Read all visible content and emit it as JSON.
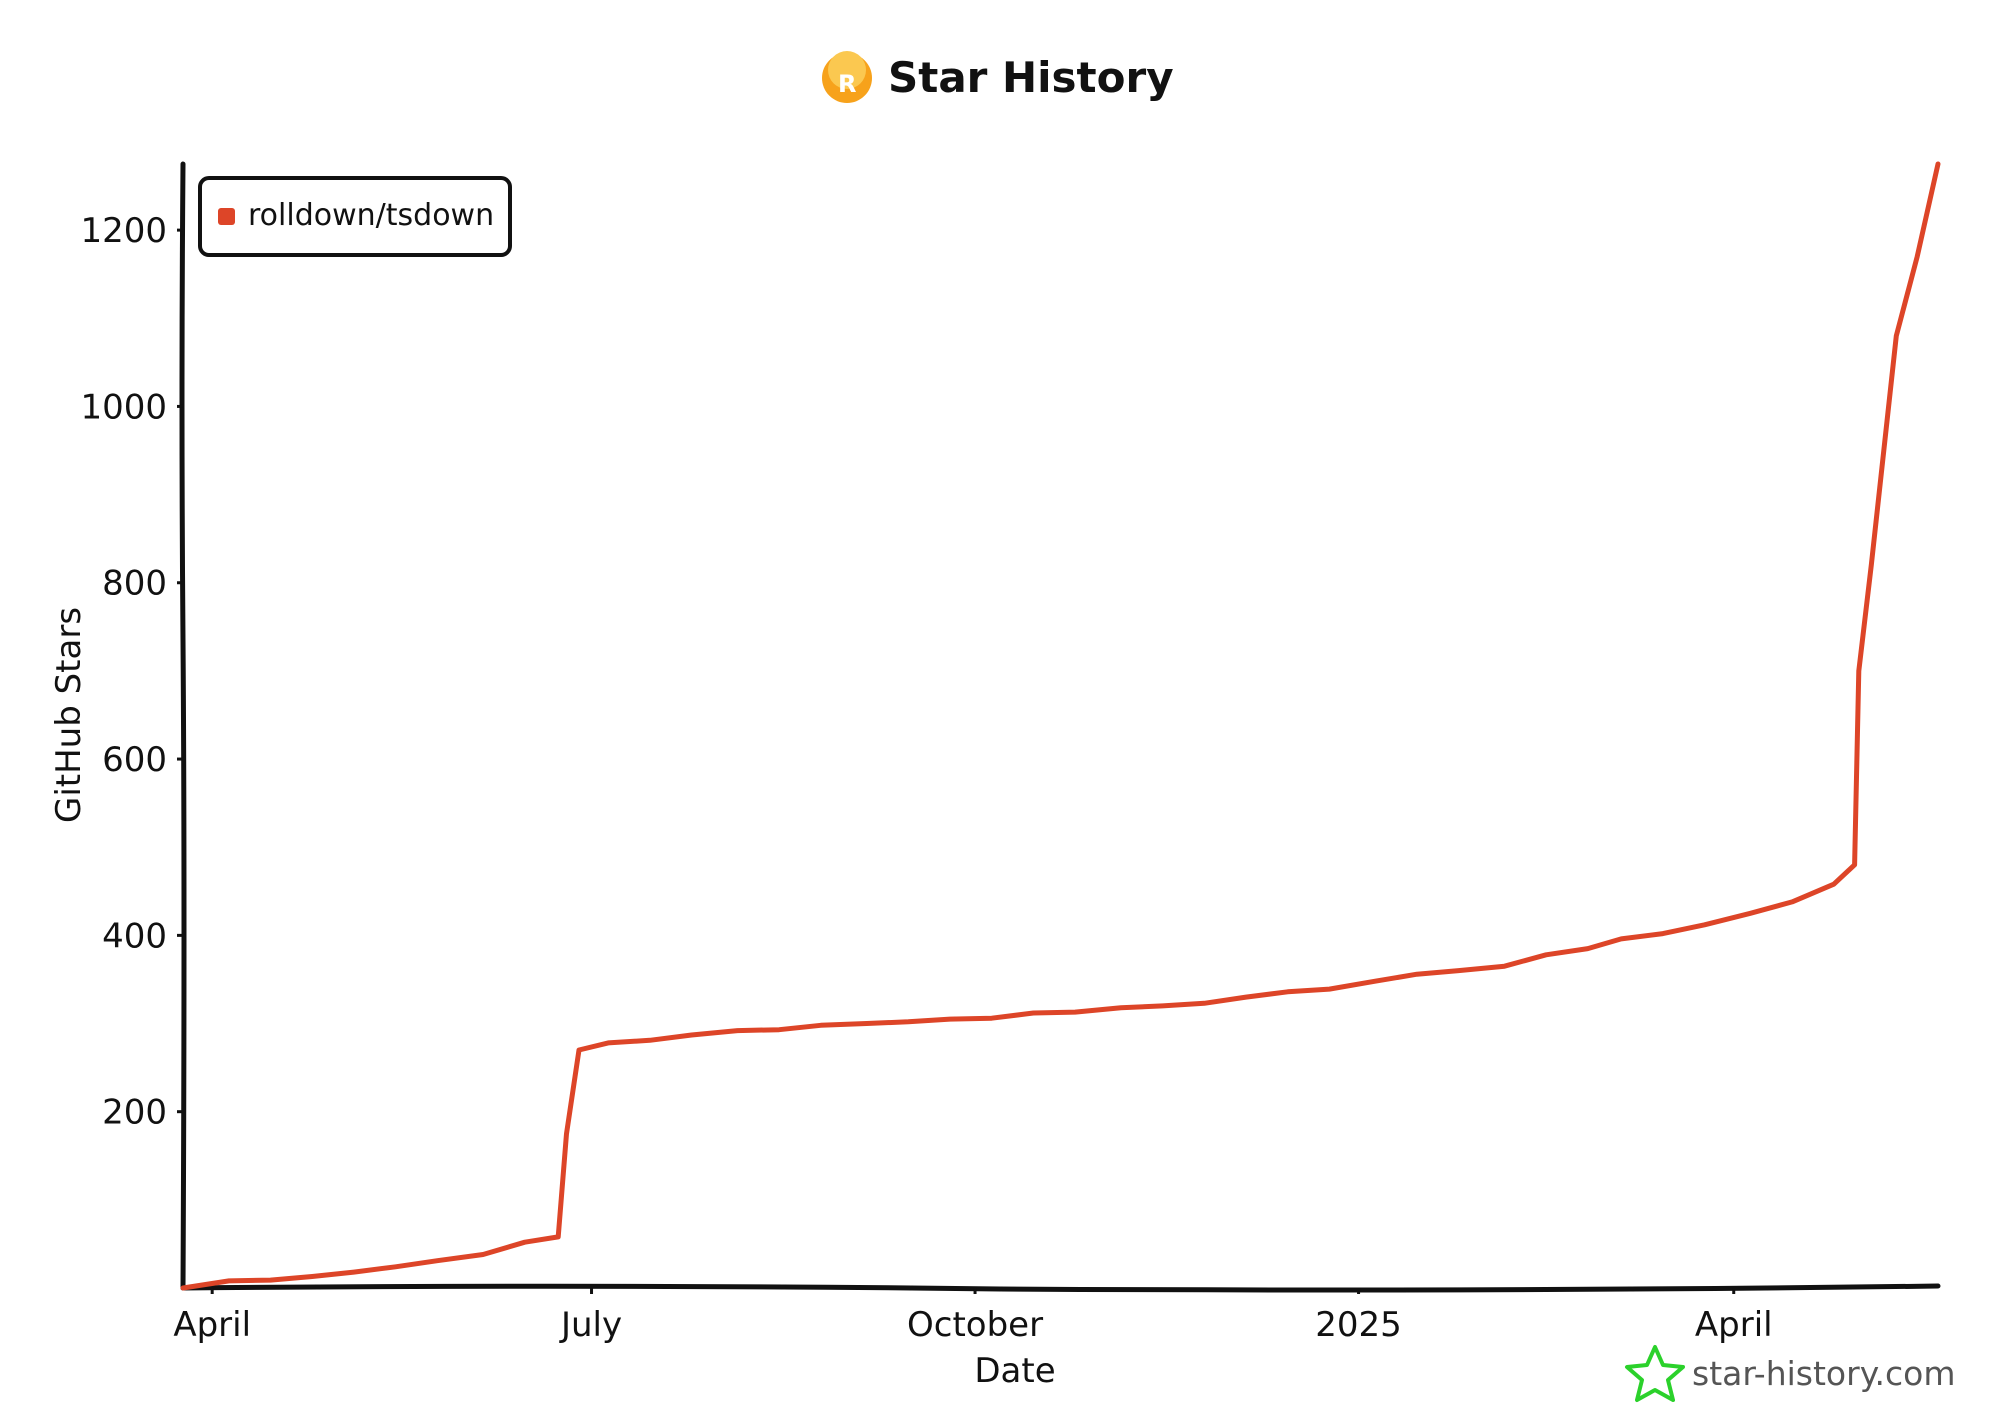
{
  "chart_data": {
    "type": "line",
    "title": "Star History",
    "xlabel": "Date",
    "ylabel": "GitHub Stars",
    "x_tick_labels": [
      "April",
      "July",
      "October",
      "2025",
      "April"
    ],
    "x_tick_dates": [
      "2024-04-01",
      "2024-07-01",
      "2024-10-01",
      "2025-01-01",
      "2025-04-01"
    ],
    "xlim": [
      "2024-03-25",
      "2025-05-20"
    ],
    "yticks": [
      200,
      400,
      600,
      800,
      1000,
      1200
    ],
    "ylim": [
      0,
      1275
    ],
    "grid": false,
    "legend_position": "top-left",
    "series": [
      {
        "name": "rolldown/tsdown",
        "color": "#dd4528",
        "points": [
          [
            "2024-03-25",
            0
          ],
          [
            "2024-04-05",
            8
          ],
          [
            "2024-04-15",
            9
          ],
          [
            "2024-04-25",
            13
          ],
          [
            "2024-05-05",
            18
          ],
          [
            "2024-05-15",
            24
          ],
          [
            "2024-05-25",
            31
          ],
          [
            "2024-06-05",
            38
          ],
          [
            "2024-06-15",
            52
          ],
          [
            "2024-06-23",
            58
          ],
          [
            "2024-06-25",
            175
          ],
          [
            "2024-06-28",
            270
          ],
          [
            "2024-07-05",
            278
          ],
          [
            "2024-07-15",
            281
          ],
          [
            "2024-07-25",
            287
          ],
          [
            "2024-08-05",
            292
          ],
          [
            "2024-08-15",
            293
          ],
          [
            "2024-08-25",
            298
          ],
          [
            "2024-09-05",
            300
          ],
          [
            "2024-09-15",
            302
          ],
          [
            "2024-09-25",
            305
          ],
          [
            "2024-10-05",
            306
          ],
          [
            "2024-10-15",
            312
          ],
          [
            "2024-10-25",
            313
          ],
          [
            "2024-11-05",
            318
          ],
          [
            "2024-11-15",
            320
          ],
          [
            "2024-11-25",
            323
          ],
          [
            "2024-12-05",
            330
          ],
          [
            "2024-12-15",
            336
          ],
          [
            "2024-12-25",
            339
          ],
          [
            "2025-01-05",
            348
          ],
          [
            "2025-01-15",
            356
          ],
          [
            "2025-01-25",
            360
          ],
          [
            "2025-02-05",
            365
          ],
          [
            "2025-02-15",
            378
          ],
          [
            "2025-02-25",
            385
          ],
          [
            "2025-03-05",
            396
          ],
          [
            "2025-03-15",
            402
          ],
          [
            "2025-03-25",
            412
          ],
          [
            "2025-04-05",
            425
          ],
          [
            "2025-04-15",
            438
          ],
          [
            "2025-04-25",
            458
          ],
          [
            "2025-04-30",
            480
          ],
          [
            "2025-05-01",
            700
          ],
          [
            "2025-05-04",
            820
          ],
          [
            "2025-05-07",
            950
          ],
          [
            "2025-05-10",
            1080
          ],
          [
            "2025-05-15",
            1170
          ],
          [
            "2025-05-20",
            1275
          ]
        ]
      }
    ]
  },
  "logo": {
    "icon": "rolldown-logo-icon",
    "glyph": "R",
    "color": "#f7a21b"
  },
  "watermark": {
    "icon": "star-outline-icon",
    "text": "star-history.com",
    "icon_color": "#2bd12b"
  }
}
